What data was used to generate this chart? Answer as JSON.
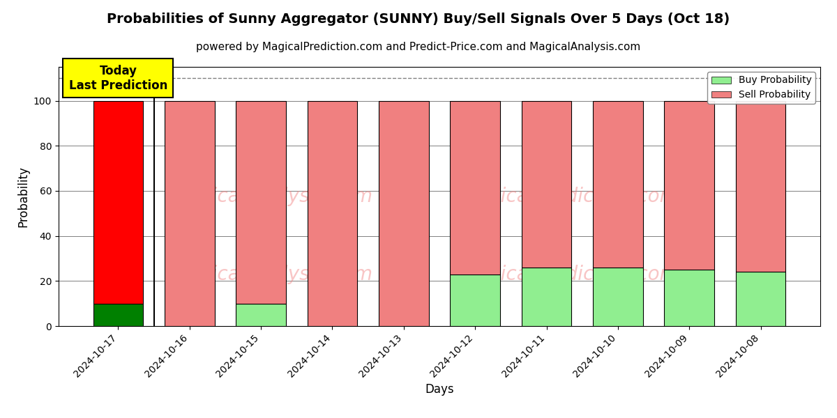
{
  "title": "Probabilities of Sunny Aggregator (SUNNY) Buy/Sell Signals Over 5 Days (Oct 18)",
  "subtitle": "powered by MagicalPrediction.com and Predict-Price.com and MagicalAnalysis.com",
  "xlabel": "Days",
  "ylabel": "Probability",
  "days": [
    "2024-10-17",
    "2024-10-16",
    "2024-10-15",
    "2024-10-14",
    "2024-10-13",
    "2024-10-12",
    "2024-10-11",
    "2024-10-10",
    "2024-10-09",
    "2024-10-08"
  ],
  "buy_probs": [
    10,
    0,
    10,
    0,
    0,
    23,
    26,
    26,
    25,
    24
  ],
  "sell_probs": [
    90,
    100,
    90,
    100,
    100,
    77,
    74,
    74,
    75,
    76
  ],
  "today_bar_buy_color": "#008000",
  "today_bar_sell_color": "#FF0000",
  "other_bar_buy_color": "#90EE90",
  "other_bar_sell_color": "#F08080",
  "today_annotation_bg": "#FFFF00",
  "today_annotation_text": "Today\nLast Prediction",
  "dashed_line_y": 110,
  "ylim": [
    0,
    115
  ],
  "yticks": [
    0,
    20,
    40,
    60,
    80,
    100
  ],
  "watermark_color": "#F08080",
  "watermark_alpha": 0.45,
  "legend_buy_label": "Buy Probability",
  "legend_sell_label": "Sell Probability",
  "title_fontsize": 14,
  "subtitle_fontsize": 11,
  "axis_label_fontsize": 12,
  "tick_fontsize": 10,
  "bar_width": 0.7
}
